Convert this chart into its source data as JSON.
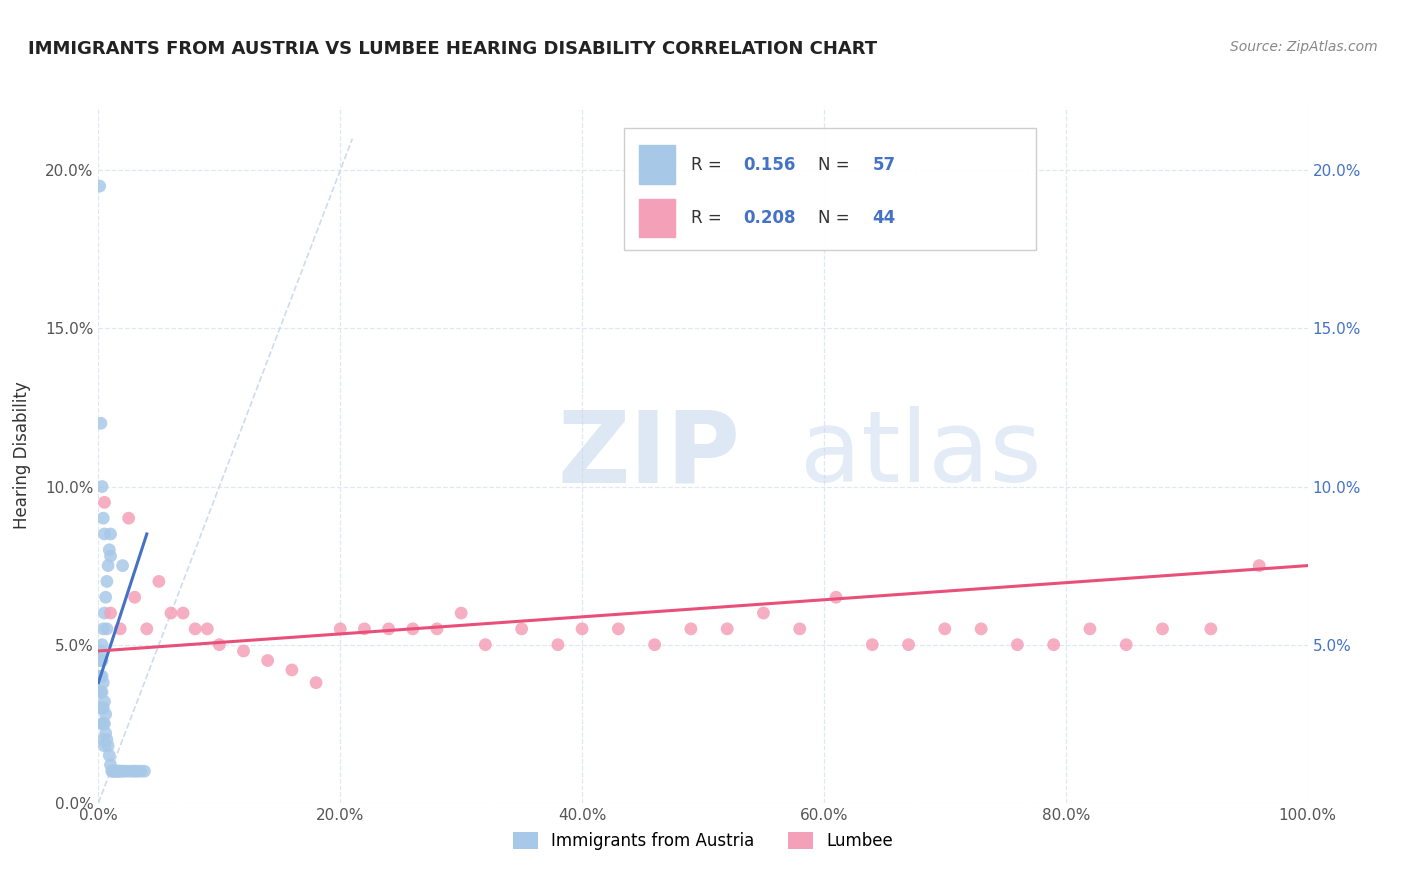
{
  "title": "IMMIGRANTS FROM AUSTRIA VS LUMBEE HEARING DISABILITY CORRELATION CHART",
  "source": "Source: ZipAtlas.com",
  "ylabel": "Hearing Disability",
  "xlim": [
    0.0,
    1.0
  ],
  "ylim": [
    0.0,
    0.22
  ],
  "xticks": [
    0.0,
    0.2,
    0.4,
    0.6,
    0.8,
    1.0
  ],
  "xticklabels": [
    "0.0%",
    "20.0%",
    "40.0%",
    "60.0%",
    "80.0%",
    "100.0%"
  ],
  "yticks": [
    0.0,
    0.05,
    0.1,
    0.15,
    0.2
  ],
  "yticklabels": [
    "0.0%",
    "5.0%",
    "10.0%",
    "15.0%",
    "20.0%"
  ],
  "right_yticklabels": [
    "",
    "5.0%",
    "10.0%",
    "15.0%",
    "20.0%"
  ],
  "legend_label1": "Immigrants from Austria",
  "legend_label2": "Lumbee",
  "R1": "0.156",
  "N1": "57",
  "R2": "0.208",
  "N2": "44",
  "color_austria": "#a8c8e8",
  "color_lumbee": "#f4a0b8",
  "color_austria_line": "#4472c4",
  "color_lumbee_line": "#e8507a",
  "color_diagonal": "#c8d8ee",
  "background_color": "#ffffff",
  "grid_color": "#dde8f0",
  "austria_scatter_x": [
    0.001,
    0.001,
    0.001,
    0.002,
    0.002,
    0.002,
    0.002,
    0.003,
    0.003,
    0.003,
    0.003,
    0.003,
    0.003,
    0.004,
    0.004,
    0.004,
    0.004,
    0.004,
    0.005,
    0.005,
    0.005,
    0.005,
    0.006,
    0.006,
    0.006,
    0.007,
    0.007,
    0.007,
    0.008,
    0.008,
    0.009,
    0.009,
    0.01,
    0.01,
    0.011,
    0.012,
    0.013,
    0.014,
    0.015,
    0.016,
    0.017,
    0.018,
    0.02,
    0.022,
    0.025,
    0.028,
    0.03,
    0.032,
    0.035,
    0.038,
    0.001,
    0.002,
    0.003,
    0.004,
    0.005,
    0.01,
    0.02
  ],
  "austria_scatter_y": [
    0.035,
    0.04,
    0.045,
    0.03,
    0.035,
    0.04,
    0.048,
    0.025,
    0.03,
    0.035,
    0.04,
    0.045,
    0.05,
    0.02,
    0.025,
    0.03,
    0.038,
    0.055,
    0.018,
    0.025,
    0.032,
    0.06,
    0.022,
    0.028,
    0.065,
    0.02,
    0.055,
    0.07,
    0.018,
    0.075,
    0.015,
    0.08,
    0.012,
    0.085,
    0.01,
    0.01,
    0.01,
    0.01,
    0.01,
    0.01,
    0.01,
    0.01,
    0.01,
    0.01,
    0.01,
    0.01,
    0.01,
    0.01,
    0.01,
    0.01,
    0.195,
    0.12,
    0.1,
    0.09,
    0.085,
    0.078,
    0.075
  ],
  "austria_regline_x": [
    0.0,
    0.04
  ],
  "austria_regline_y": [
    0.038,
    0.085
  ],
  "lumbee_scatter_x": [
    0.005,
    0.01,
    0.018,
    0.025,
    0.03,
    0.04,
    0.05,
    0.06,
    0.07,
    0.08,
    0.09,
    0.1,
    0.12,
    0.14,
    0.16,
    0.18,
    0.2,
    0.22,
    0.24,
    0.26,
    0.28,
    0.3,
    0.32,
    0.35,
    0.38,
    0.4,
    0.43,
    0.46,
    0.49,
    0.52,
    0.55,
    0.58,
    0.61,
    0.64,
    0.67,
    0.7,
    0.73,
    0.76,
    0.79,
    0.82,
    0.85,
    0.88,
    0.92,
    0.96
  ],
  "lumbee_scatter_y": [
    0.095,
    0.06,
    0.055,
    0.09,
    0.065,
    0.055,
    0.07,
    0.06,
    0.06,
    0.055,
    0.055,
    0.05,
    0.048,
    0.045,
    0.042,
    0.038,
    0.055,
    0.055,
    0.055,
    0.055,
    0.055,
    0.06,
    0.05,
    0.055,
    0.05,
    0.055,
    0.055,
    0.05,
    0.055,
    0.055,
    0.06,
    0.055,
    0.065,
    0.05,
    0.05,
    0.055,
    0.055,
    0.05,
    0.05,
    0.055,
    0.05,
    0.055,
    0.055,
    0.075
  ],
  "lumbee_regline_x": [
    0.0,
    1.0
  ],
  "lumbee_regline_y": [
    0.048,
    0.075
  ]
}
